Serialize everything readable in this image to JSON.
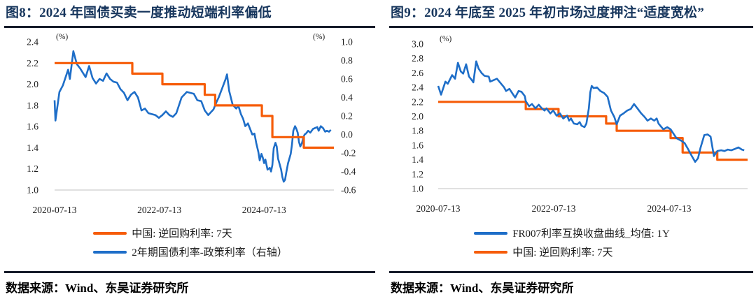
{
  "figures": [
    {
      "title": "图8：2024 年国债买卖一度推动短端利率偏低",
      "source": "数据来源：Wind、东吴证券研究所"
    },
    {
      "title": "图9：2024 年底至 2025 年初市场过度押注“适度宽松”",
      "source": "数据来源：Wind、东吴证券研究所"
    }
  ],
  "colors": {
    "orange": "#F65C08",
    "blue": "#1E6EC8",
    "baseline": "#D6D6D6",
    "title_navy": "#17365D"
  },
  "chart_data": [
    {
      "type": "line",
      "title": "图8：2024 年国债买卖一度推动短端利率偏低",
      "x_axis": {
        "domain": [
          0,
          64
        ],
        "unit_months_since": "2020-07-13",
        "ticks": [
          {
            "t": 0,
            "label": "2020-07-13"
          },
          {
            "t": 24,
            "label": "2022-07-13"
          },
          {
            "t": 48,
            "label": "2024-07-13"
          }
        ]
      },
      "y_left": {
        "unit": "(%)",
        "domain": [
          1.0,
          2.4
        ],
        "ticks": [
          "2.4",
          "2.2",
          "2.0",
          "1.8",
          "1.6",
          "1.4",
          "1.2",
          "1.0"
        ]
      },
      "y_right": {
        "unit": "(%)",
        "domain": [
          -0.6,
          1.0
        ],
        "ticks": [
          "1.0",
          "0.8",
          "0.6",
          "0.4",
          "0.2",
          "0.0",
          "-0.2",
          "-0.4",
          "-0.6"
        ]
      },
      "series": [
        {
          "name": "中国: 逆回购利率: 7天",
          "color": "#F65C08",
          "axis": "left",
          "width": 3.2,
          "draw_order": 2,
          "points": [
            [
              0,
              2.2
            ],
            [
              17.8,
              2.2
            ],
            [
              17.8,
              2.1
            ],
            [
              24.7,
              2.1
            ],
            [
              24.7,
              2.0
            ],
            [
              34.4,
              2.0
            ],
            [
              34.4,
              1.9
            ],
            [
              36.8,
              1.9
            ],
            [
              36.8,
              1.8
            ],
            [
              47.5,
              1.8
            ],
            [
              47.5,
              1.7
            ],
            [
              49.9,
              1.7
            ],
            [
              49.9,
              1.5
            ],
            [
              57.1,
              1.5
            ],
            [
              57.1,
              1.4
            ],
            [
              64,
              1.4
            ]
          ]
        },
        {
          "name": "2年期国债利率-政策利率（右轴）",
          "color": "#1E6EC8",
          "axis": "right",
          "width": 2.6,
          "draw_order": 1,
          "points": [
            [
              0,
              0.37
            ],
            [
              0.2,
              0.15
            ],
            [
              1.1,
              0.46
            ],
            [
              1.9,
              0.53
            ],
            [
              3.1,
              0.7
            ],
            [
              3.5,
              0.6
            ],
            [
              4.3,
              0.9
            ],
            [
              5.1,
              0.76
            ],
            [
              5.9,
              0.71
            ],
            [
              7.1,
              0.62
            ],
            [
              7.9,
              0.74
            ],
            [
              8.7,
              0.61
            ],
            [
              9.5,
              0.55
            ],
            [
              10.3,
              0.6
            ],
            [
              11.1,
              0.58
            ],
            [
              11.9,
              0.66
            ],
            [
              12.7,
              0.6
            ],
            [
              13.5,
              0.57
            ],
            [
              14.3,
              0.56
            ],
            [
              15.1,
              0.49
            ],
            [
              15.9,
              0.45
            ],
            [
              16.7,
              0.37
            ],
            [
              17.5,
              0.43
            ],
            [
              18.3,
              0.46
            ],
            [
              19.1,
              0.4
            ],
            [
              19.9,
              0.26
            ],
            [
              20.7,
              0.28
            ],
            [
              21.5,
              0.23
            ],
            [
              22.3,
              0.22
            ],
            [
              23.1,
              0.21
            ],
            [
              23.9,
              0.18
            ],
            [
              24.7,
              0.21
            ],
            [
              25.5,
              0.25
            ],
            [
              26.3,
              0.21
            ],
            [
              27.1,
              0.19
            ],
            [
              27.9,
              0.23
            ],
            [
              29.1,
              0.4
            ],
            [
              30.3,
              0.46
            ],
            [
              31.9,
              0.44
            ],
            [
              32.7,
              0.37
            ],
            [
              33.6,
              0.36
            ],
            [
              34.4,
              0.26
            ],
            [
              35.2,
              0.21
            ],
            [
              36,
              0.25
            ],
            [
              36.4,
              0.27
            ],
            [
              37.1,
              0.35
            ],
            [
              37.6,
              0.4
            ],
            [
              38.4,
              0.5
            ],
            [
              39.2,
              0.6
            ],
            [
              39.5,
              0.65
            ],
            [
              40,
              0.47
            ],
            [
              40.8,
              0.32
            ],
            [
              41.6,
              0.28
            ],
            [
              42.1,
              0.31
            ],
            [
              42.7,
              0.22
            ],
            [
              43.2,
              0.17
            ],
            [
              43.7,
              0.09
            ],
            [
              44.3,
              0.12
            ],
            [
              44.8,
              0.06
            ],
            [
              45.3,
              0
            ],
            [
              45.8,
              0.01
            ],
            [
              46.2,
              -0.09
            ],
            [
              46.7,
              -0.19
            ],
            [
              47,
              -0.28
            ],
            [
              47.4,
              -0.21
            ],
            [
              47.7,
              -0.25
            ],
            [
              48,
              -0.31
            ],
            [
              48.3,
              -0.27
            ],
            [
              48.8,
              -0.38
            ],
            [
              49.3,
              -0.36
            ],
            [
              49.6,
              -0.4
            ],
            [
              49.9,
              -0.33
            ],
            [
              50.2,
              -0.15
            ],
            [
              50.6,
              -0.09
            ],
            [
              50.9,
              -0.13
            ],
            [
              51.2,
              -0.26
            ],
            [
              51.5,
              -0.31
            ],
            [
              51.9,
              -0.38
            ],
            [
              52.2,
              -0.46
            ],
            [
              52.5,
              -0.51
            ],
            [
              52.8,
              -0.49
            ],
            [
              53.1,
              -0.41
            ],
            [
              53.5,
              -0.31
            ],
            [
              53.8,
              -0.26
            ],
            [
              54.1,
              -0.21
            ],
            [
              54.4,
              -0.11
            ],
            [
              54.7,
              0.04
            ],
            [
              55.1,
              0.09
            ],
            [
              55.4,
              0.06
            ],
            [
              55.7,
              0.02
            ],
            [
              56,
              -0.08
            ],
            [
              56.3,
              -0.13
            ],
            [
              56.7,
              -0.09
            ],
            [
              57,
              -0.03
            ],
            [
              57.3,
              0
            ],
            [
              57.6,
              0.01
            ],
            [
              58.1,
              0.04
            ],
            [
              58.6,
              0.02
            ],
            [
              59.2,
              0.06
            ],
            [
              59.7,
              0.07
            ],
            [
              60.2,
              0.08
            ],
            [
              60.5,
              0.04
            ],
            [
              61,
              0.09
            ],
            [
              61.5,
              0.07
            ],
            [
              62,
              0.03
            ],
            [
              62.4,
              0.04
            ],
            [
              62.9,
              0.03
            ],
            [
              63.3,
              0.05
            ]
          ]
        }
      ]
    },
    {
      "type": "line",
      "title": "图9：2024 年底至 2025 年初市场过度押注“适度宽松”",
      "x_axis": {
        "domain": [
          0,
          64.3
        ],
        "unit_months_since": "2020-07-13",
        "ticks": [
          {
            "t": 0,
            "label": "2020-07-13"
          },
          {
            "t": 24,
            "label": "2022-07-13"
          },
          {
            "t": 48,
            "label": "2024-07-13"
          }
        ]
      },
      "y_left": {
        "unit": "(%)",
        "domain": [
          1.0,
          3.0
        ],
        "ticks": [
          "3.0",
          "2.8",
          "2.6",
          "2.4",
          "2.2",
          "2.0",
          "1.8",
          "1.6",
          "1.4",
          "1.2",
          "1.0"
        ]
      },
      "series": [
        {
          "name": "FR007利率互换收盘曲线_均值: 1Y",
          "color": "#1E6EC8",
          "axis": "left",
          "width": 2.6,
          "draw_order": 2,
          "points": [
            [
              0,
              2.42
            ],
            [
              0.6,
              2.3
            ],
            [
              1.5,
              2.48
            ],
            [
              2,
              2.45
            ],
            [
              2.9,
              2.57
            ],
            [
              3.5,
              2.52
            ],
            [
              4.1,
              2.74
            ],
            [
              4.7,
              2.62
            ],
            [
              5.2,
              2.59
            ],
            [
              5.8,
              2.72
            ],
            [
              6.4,
              2.55
            ],
            [
              7,
              2.5
            ],
            [
              7.3,
              2.47
            ],
            [
              7.9,
              2.76
            ],
            [
              8.4,
              2.66
            ],
            [
              9,
              2.6
            ],
            [
              9.6,
              2.56
            ],
            [
              10.5,
              2.55
            ],
            [
              10.8,
              2.48
            ],
            [
              12.2,
              2.52
            ],
            [
              13.7,
              2.4
            ],
            [
              14.1,
              2.35
            ],
            [
              14.8,
              2.38
            ],
            [
              15.6,
              2.3
            ],
            [
              16,
              2.26
            ],
            [
              16.7,
              2.35
            ],
            [
              17.3,
              2.34
            ],
            [
              18,
              2.28
            ],
            [
              18.2,
              2.21
            ],
            [
              18.9,
              2.14
            ],
            [
              19.5,
              2.17
            ],
            [
              20.2,
              2.11
            ],
            [
              20.9,
              2.16
            ],
            [
              21.4,
              2.12
            ],
            [
              22.1,
              2.08
            ],
            [
              22.5,
              2.11
            ],
            [
              23.3,
              2.04
            ],
            [
              23.9,
              2.08
            ],
            [
              24.6,
              2.01
            ],
            [
              25.3,
              2.04
            ],
            [
              26,
              1.97
            ],
            [
              26.8,
              2.01
            ],
            [
              27.2,
              1.94
            ],
            [
              27.6,
              1.97
            ],
            [
              28.2,
              1.9
            ],
            [
              28.9,
              1.89
            ],
            [
              29.4,
              1.92
            ],
            [
              29.8,
              1.87
            ],
            [
              30.4,
              1.85
            ],
            [
              30.8,
              1.9
            ],
            [
              31.3,
              2.11
            ],
            [
              31.6,
              2.33
            ],
            [
              31.9,
              2.42
            ],
            [
              32.3,
              2.39
            ],
            [
              33,
              2.4
            ],
            [
              33.7,
              2.35
            ],
            [
              34.5,
              2.32
            ],
            [
              35.2,
              2.27
            ],
            [
              35.9,
              2.08
            ],
            [
              36.6,
              1.99
            ],
            [
              37.1,
              1.89
            ],
            [
              37.8,
              2.01
            ],
            [
              38.5,
              2.04
            ],
            [
              39.3,
              2.08
            ],
            [
              40,
              2.1
            ],
            [
              40.7,
              2.17
            ],
            [
              41.5,
              2.1
            ],
            [
              42.2,
              2.04
            ],
            [
              42.9,
              1.99
            ],
            [
              43.5,
              1.94
            ],
            [
              44.2,
              1.97
            ],
            [
              44.9,
              1.94
            ],
            [
              45.4,
              1.97
            ],
            [
              45.8,
              1.9
            ],
            [
              46.4,
              1.85
            ],
            [
              46.8,
              1.82
            ],
            [
              47.6,
              1.85
            ],
            [
              48.3,
              1.82
            ],
            [
              48.9,
              1.76
            ],
            [
              49.5,
              1.7
            ],
            [
              50,
              1.68
            ],
            [
              50.6,
              1.66
            ],
            [
              51.2,
              1.63
            ],
            [
              51.9,
              1.55
            ],
            [
              52.7,
              1.45
            ],
            [
              53.4,
              1.37
            ],
            [
              54,
              1.42
            ],
            [
              54.5,
              1.56
            ],
            [
              55.3,
              1.74
            ],
            [
              56,
              1.75
            ],
            [
              56.6,
              1.72
            ],
            [
              57.3,
              1.45
            ],
            [
              58,
              1.52
            ],
            [
              58.8,
              1.53
            ],
            [
              59.5,
              1.52
            ],
            [
              60.2,
              1.54
            ],
            [
              60.9,
              1.53
            ],
            [
              61.7,
              1.55
            ],
            [
              62.4,
              1.57
            ],
            [
              63.1,
              1.54
            ],
            [
              63.6,
              1.53
            ]
          ]
        },
        {
          "name": "中国: 逆回购利率: 7天",
          "color": "#F65C08",
          "axis": "left",
          "width": 3.2,
          "draw_order": 1,
          "points": [
            [
              0,
              2.2
            ],
            [
              18.2,
              2.2
            ],
            [
              18.2,
              2.1
            ],
            [
              25,
              2.1
            ],
            [
              25,
              2.0
            ],
            [
              34.9,
              2.0
            ],
            [
              34.9,
              1.9
            ],
            [
              37.1,
              1.9
            ],
            [
              37.1,
              1.8
            ],
            [
              48.3,
              1.8
            ],
            [
              48.3,
              1.7
            ],
            [
              50.8,
              1.7
            ],
            [
              50.8,
              1.5
            ],
            [
              58,
              1.5
            ],
            [
              58,
              1.4
            ],
            [
              64.3,
              1.4
            ]
          ]
        }
      ]
    }
  ]
}
